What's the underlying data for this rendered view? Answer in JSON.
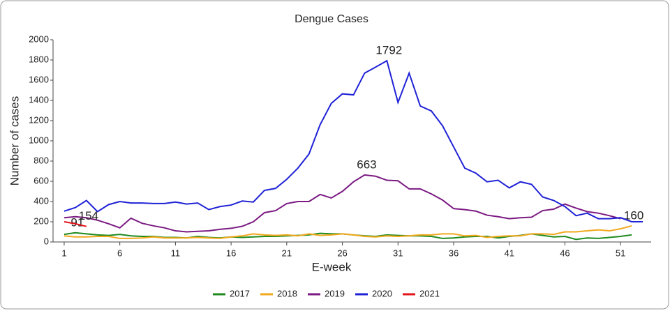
{
  "chart_data": {
    "type": "line",
    "title": "Dengue Cases",
    "xlabel": "E-week",
    "ylabel": "Number of cases",
    "x": [
      1,
      2,
      3,
      4,
      5,
      6,
      7,
      8,
      9,
      10,
      11,
      12,
      13,
      14,
      15,
      16,
      17,
      18,
      19,
      20,
      21,
      22,
      23,
      24,
      25,
      26,
      27,
      28,
      29,
      30,
      31,
      32,
      33,
      34,
      35,
      36,
      37,
      38,
      39,
      40,
      41,
      42,
      43,
      44,
      45,
      46,
      47,
      48,
      49,
      50,
      51,
      52,
      53
    ],
    "xlim": [
      0,
      54
    ],
    "xticks": [
      1,
      6,
      11,
      16,
      21,
      26,
      31,
      36,
      41,
      46,
      51
    ],
    "ylim": [
      0,
      2000
    ],
    "yticks": [
      0,
      200,
      400,
      600,
      800,
      1000,
      1200,
      1400,
      1600,
      1800,
      2000
    ],
    "grid": false,
    "legend": "bottom",
    "series": [
      {
        "name": "2017",
        "color": "#1f8a1f",
        "values": [
          75,
          91,
          80,
          70,
          65,
          75,
          60,
          55,
          55,
          45,
          45,
          40,
          55,
          45,
          40,
          50,
          45,
          50,
          55,
          55,
          60,
          65,
          70,
          85,
          80,
          80,
          70,
          60,
          55,
          70,
          65,
          60,
          60,
          55,
          35,
          40,
          50,
          55,
          55,
          40,
          55,
          65,
          80,
          65,
          50,
          55,
          25,
          40,
          35,
          45,
          55,
          70,
          null
        ],
        "value_labels": [
          null,
          "91",
          null,
          null,
          null,
          null,
          null,
          null,
          null,
          null,
          null,
          null,
          null,
          null,
          null,
          null,
          null,
          null,
          null,
          null,
          null,
          null,
          null,
          null,
          null,
          null,
          null,
          null,
          null,
          null,
          null,
          null,
          null,
          null,
          null,
          null,
          null,
          null,
          null,
          null,
          null,
          null,
          null,
          null,
          null,
          null,
          null,
          null,
          null,
          null,
          null,
          null,
          null
        ]
      },
      {
        "name": "2018",
        "color": "#f2a81d",
        "values": [
          60,
          50,
          50,
          55,
          55,
          35,
          35,
          40,
          50,
          40,
          40,
          40,
          45,
          40,
          35,
          50,
          60,
          80,
          70,
          65,
          70,
          60,
          80,
          65,
          70,
          80,
          70,
          55,
          50,
          60,
          55,
          60,
          70,
          70,
          80,
          80,
          60,
          65,
          45,
          55,
          60,
          60,
          80,
          80,
          75,
          100,
          100,
          110,
          120,
          110,
          130,
          160,
          null
        ],
        "value_labels": [
          null,
          null,
          null,
          null,
          null,
          null,
          null,
          null,
          null,
          null,
          null,
          null,
          null,
          null,
          null,
          null,
          null,
          null,
          null,
          null,
          null,
          null,
          null,
          null,
          null,
          null,
          null,
          null,
          null,
          null,
          null,
          null,
          null,
          null,
          null,
          null,
          null,
          null,
          null,
          null,
          null,
          null,
          null,
          null,
          null,
          null,
          null,
          null,
          null,
          null,
          null,
          "160",
          null
        ]
      },
      {
        "name": "2019",
        "color": "#7b1a82",
        "values": [
          240,
          250,
          240,
          215,
          180,
          140,
          235,
          185,
          160,
          140,
          110,
          100,
          105,
          110,
          125,
          135,
          155,
          200,
          290,
          310,
          380,
          400,
          400,
          470,
          435,
          500,
          595,
          663,
          650,
          610,
          605,
          525,
          525,
          475,
          415,
          330,
          320,
          305,
          265,
          250,
          230,
          240,
          245,
          310,
          325,
          375,
          335,
          300,
          285,
          260,
          230,
          null,
          null
        ],
        "value_labels": [
          null,
          null,
          null,
          null,
          null,
          null,
          null,
          null,
          null,
          null,
          null,
          null,
          null,
          null,
          null,
          null,
          null,
          null,
          null,
          null,
          null,
          null,
          null,
          null,
          null,
          null,
          null,
          "663",
          null,
          null,
          null,
          null,
          null,
          null,
          null,
          null,
          null,
          null,
          null,
          null,
          null,
          null,
          null,
          null,
          null,
          null,
          null,
          null,
          null,
          null,
          null,
          null,
          null
        ]
      },
      {
        "name": "2020",
        "color": "#1f22d6",
        "values": [
          305,
          340,
          410,
          300,
          370,
          400,
          385,
          385,
          380,
          380,
          395,
          375,
          385,
          320,
          350,
          365,
          405,
          395,
          510,
          530,
          620,
          730,
          870,
          1160,
          1370,
          1465,
          1455,
          1670,
          1730,
          1792,
          1380,
          1670,
          1345,
          1295,
          1150,
          940,
          730,
          680,
          595,
          610,
          535,
          595,
          570,
          445,
          410,
          350,
          260,
          285,
          230,
          230,
          240,
          200,
          200
        ],
        "value_labels": [
          null,
          null,
          null,
          null,
          null,
          null,
          null,
          null,
          null,
          null,
          null,
          null,
          null,
          null,
          null,
          null,
          null,
          null,
          null,
          null,
          null,
          null,
          null,
          null,
          null,
          null,
          null,
          null,
          null,
          "1792",
          null,
          null,
          null,
          null,
          null,
          null,
          null,
          null,
          null,
          null,
          null,
          null,
          null,
          null,
          null,
          null,
          null,
          null,
          null,
          null,
          null,
          null,
          null
        ]
      },
      {
        "name": "2021",
        "color": "#e3141b",
        "values": [
          200,
          180,
          154,
          null,
          null,
          null,
          null,
          null,
          null,
          null,
          null,
          null,
          null,
          null,
          null,
          null,
          null,
          null,
          null,
          null,
          null,
          null,
          null,
          null,
          null,
          null,
          null,
          null,
          null,
          null,
          null,
          null,
          null,
          null,
          null,
          null,
          null,
          null,
          null,
          null,
          null,
          null,
          null,
          null,
          null,
          null,
          null,
          null,
          null,
          null,
          null,
          null,
          null
        ],
        "value_labels": [
          null,
          null,
          "154",
          null,
          null,
          null,
          null,
          null,
          null,
          null,
          null,
          null,
          null,
          null,
          null,
          null,
          null,
          null,
          null,
          null,
          null,
          null,
          null,
          null,
          null,
          null,
          null,
          null,
          null,
          null,
          null,
          null,
          null,
          null,
          null,
          null,
          null,
          null,
          null,
          null,
          null,
          null,
          null,
          null,
          null,
          null,
          null,
          null,
          null,
          null,
          null,
          null,
          null
        ]
      }
    ]
  }
}
